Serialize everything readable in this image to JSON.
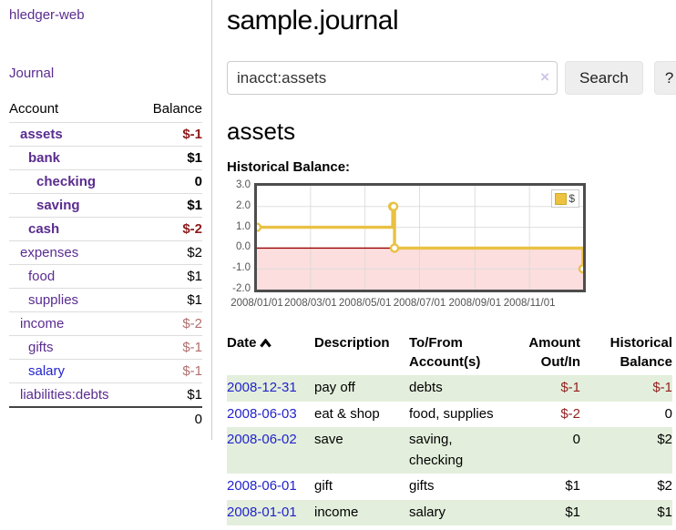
{
  "app": {
    "title": "hledger-web",
    "nav_journal": "Journal"
  },
  "sidebar": {
    "headers": {
      "account": "Account",
      "balance": "Balance"
    },
    "accounts": [
      {
        "name": "assets",
        "balance": "$-1"
      },
      {
        "name": "bank",
        "balance": "$1"
      },
      {
        "name": "checking",
        "balance": "0"
      },
      {
        "name": "saving",
        "balance": "$1"
      },
      {
        "name": "cash",
        "balance": "$-2"
      },
      {
        "name": "expenses",
        "balance": "$2"
      },
      {
        "name": "food",
        "balance": "$1"
      },
      {
        "name": "supplies",
        "balance": "$1"
      },
      {
        "name": "income",
        "balance": "$-2"
      },
      {
        "name": "gifts",
        "balance": "$-1"
      },
      {
        "name": "salary",
        "balance": "$-1"
      },
      {
        "name": "liabilities:debts",
        "balance": "$1"
      }
    ],
    "total": "0"
  },
  "header": {
    "title": "sample.journal"
  },
  "search": {
    "value": "inacct:assets",
    "clear_icon": "×",
    "button_label": "Search",
    "help_label": "?"
  },
  "account_page": {
    "heading": "assets",
    "chart_label": "Historical Balance:"
  },
  "chart_data": {
    "type": "line",
    "step": true,
    "title": "Historical Balance:",
    "series": [
      {
        "name": "$",
        "x": [
          "2008-01-01",
          "2008-06-01",
          "2008-06-02",
          "2008-06-03",
          "2008-12-31"
        ],
        "values": [
          1,
          2,
          2,
          0,
          -1
        ]
      }
    ],
    "xlim": [
      "2008-01-01",
      "2008-12-31"
    ],
    "ylim": [
      -2,
      3
    ],
    "y_ticks": [
      "3.0",
      "2.0",
      "1.0",
      "0.0",
      "-1.0",
      "-2.0"
    ],
    "x_ticks": [
      "2008/01/01",
      "2008/03/01",
      "2008/05/01",
      "2008/07/01",
      "2008/09/01",
      "2008/11/01"
    ],
    "legend_position": "top-right",
    "grid": true,
    "colors": {
      "line": "#e9c143",
      "legend_swatch": "#edc240",
      "negative_region": "#fcdede",
      "zero_line": "#990000",
      "gridline": "#d9d9d9",
      "border": "#4d4d4d"
    }
  },
  "register": {
    "headers": [
      "Date",
      "Description",
      "To/From Account(s)",
      "Amount Out/In",
      "Historical Balance"
    ],
    "rows": [
      {
        "date": "2008-12-31",
        "description": "pay off",
        "to_from": "debts",
        "amount": "$-1",
        "balance": "$-1"
      },
      {
        "date": "2008-06-03",
        "description": "eat & shop",
        "to_from": "food, supplies",
        "amount": "$-2",
        "balance": "0"
      },
      {
        "date": "2008-06-02",
        "description": "save",
        "to_from": "saving,\nchecking",
        "amount": "0",
        "balance": "$2"
      },
      {
        "date": "2008-06-01",
        "description": "gift",
        "to_from": "gifts",
        "amount": "$1",
        "balance": "$2"
      },
      {
        "date": "2008-01-01",
        "description": "income",
        "to_from": "salary",
        "amount": "$1",
        "balance": "$1"
      }
    ]
  }
}
